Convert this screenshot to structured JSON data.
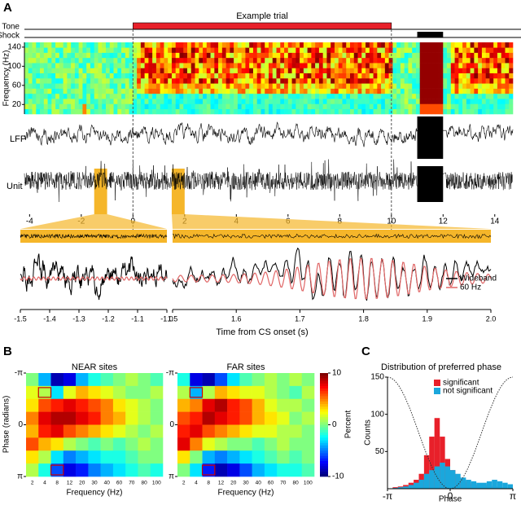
{
  "panel_a": {
    "label": "A",
    "title": "Example trial",
    "event_rows": [
      "Tone",
      "Shock"
    ],
    "spectrogram": {
      "ylabel": "Frequency (Hz)",
      "ylim": [
        0,
        150
      ],
      "yticks": [
        20,
        60,
        100,
        140
      ]
    },
    "traces": [
      "LFP",
      "Unit"
    ],
    "time": {
      "xlim": [
        -4.2,
        14.7
      ],
      "xticks": [
        -4,
        -2,
        0,
        2,
        4,
        6,
        8,
        10,
        12,
        14
      ]
    },
    "zoom": {
      "left_xlim": [
        -1.5,
        -1.0
      ],
      "left_xticks": [
        -1.5,
        -1.4,
        -1.3,
        -1.2,
        -1.1,
        {
          "value": -1.0,
          "label": "-1.0"
        }
      ],
      "right_xlim": [
        1.5,
        2.0
      ],
      "right_xticks": [
        1.5,
        1.6,
        1.7,
        1.8,
        1.9,
        {
          "value": 2.0,
          "label": "2.0"
        }
      ],
      "xlabel": "Time from CS onset (s)",
      "legend": [
        {
          "name": "Wideband",
          "color": "#000000"
        },
        {
          "name": "60 Hz",
          "color": "#e06666"
        }
      ]
    }
  },
  "panel_b": {
    "label": "B",
    "ylabel": "Phase (radians)",
    "xlabel": "Frequency (Hz)",
    "categories": [
      2,
      4,
      8,
      12,
      20,
      30,
      40,
      60,
      70,
      80,
      100
    ],
    "ylim": [
      -3.14,
      3.14
    ],
    "yticks": [
      {
        "value": -3.14,
        "label": "-π"
      },
      {
        "value": 0,
        "label": "0"
      },
      {
        "value": 3.14,
        "label": "π"
      }
    ],
    "maps": [
      {
        "title": "NEAR sites",
        "values": [
          [
            0,
            -4,
            -9,
            -8,
            -4,
            -2,
            -1,
            0,
            1,
            0,
            -1
          ],
          [
            2,
            1,
            -3,
            2,
            4,
            3,
            2,
            1,
            0,
            0,
            1
          ],
          [
            3,
            6,
            7,
            8,
            7,
            6,
            5,
            3,
            2,
            1,
            0
          ],
          [
            5,
            8,
            9,
            9,
            8,
            7,
            5,
            4,
            2,
            1,
            0
          ],
          [
            4,
            7,
            8,
            6,
            5,
            4,
            3,
            2,
            1,
            0,
            1
          ],
          [
            6,
            4,
            3,
            1,
            0,
            -1,
            0,
            -1,
            0,
            1,
            0
          ],
          [
            3,
            1,
            -3,
            -5,
            -4,
            -3,
            -2,
            -2,
            -1,
            0,
            0
          ],
          [
            1,
            -2,
            -6,
            -8,
            -7,
            -5,
            -4,
            -3,
            -2,
            -1,
            -2
          ]
        ]
      },
      {
        "title": "FAR sites",
        "values": [
          [
            -2,
            -8,
            -9,
            -6,
            -3,
            -1,
            0,
            1,
            0,
            1,
            0
          ],
          [
            1,
            -4,
            1,
            4,
            3,
            2,
            2,
            1,
            0,
            -1,
            1
          ],
          [
            4,
            5,
            8,
            9,
            7,
            6,
            4,
            2,
            1,
            1,
            0
          ],
          [
            6,
            7,
            9,
            8,
            7,
            6,
            4,
            3,
            2,
            0,
            1
          ],
          [
            7,
            8,
            6,
            5,
            4,
            3,
            2,
            2,
            1,
            1,
            0
          ],
          [
            8,
            5,
            2,
            1,
            0,
            0,
            -1,
            0,
            1,
            0,
            0
          ],
          [
            3,
            0,
            -4,
            -5,
            -4,
            -3,
            -2,
            -1,
            0,
            -1,
            0
          ],
          [
            0,
            -3,
            -7,
            -9,
            -8,
            -6,
            -4,
            -3,
            -2,
            -2,
            -1
          ]
        ]
      }
    ],
    "colorbar": {
      "label": "Percent",
      "lim": [
        -10,
        10
      ],
      "ticks": [
        -10,
        0,
        10
      ]
    }
  },
  "panel_c": {
    "label": "C",
    "type": "histogram",
    "title": "Distribution of preferred phase",
    "ylabel": "Counts",
    "xlabel": "Phase",
    "bins": [
      -3.14,
      -2.88,
      -2.62,
      -2.36,
      -2.09,
      -1.83,
      -1.57,
      -1.31,
      -1.05,
      -0.79,
      -0.52,
      -0.26,
      0,
      0.26,
      0.52,
      0.79,
      1.05,
      1.31,
      1.57,
      1.83,
      2.09,
      2.36,
      2.62,
      2.88,
      3.14
    ],
    "series": [
      {
        "name": "significant",
        "color": "#e8202a",
        "values": [
          0,
          2,
          3,
          5,
          8,
          12,
          20,
          45,
          70,
          95,
          70,
          40,
          25,
          15,
          10,
          8,
          6,
          5,
          5,
          4,
          3,
          2,
          1,
          0
        ]
      },
      {
        "name": "not significant",
        "color": "#1ba7dc",
        "values": [
          0,
          1,
          2,
          3,
          5,
          8,
          12,
          20,
          25,
          30,
          35,
          30,
          25,
          20,
          15,
          12,
          10,
          8,
          8,
          10,
          12,
          10,
          8,
          6
        ]
      }
    ],
    "xlim": [
      -3.14,
      3.14
    ],
    "ylim": [
      0,
      150
    ],
    "yticks": [
      50,
      100,
      150
    ],
    "xticks": [
      {
        "value": -3.14,
        "label": "-π"
      },
      {
        "value": 0,
        "label": "0"
      },
      {
        "value": 3.14,
        "label": "π"
      }
    ]
  }
}
